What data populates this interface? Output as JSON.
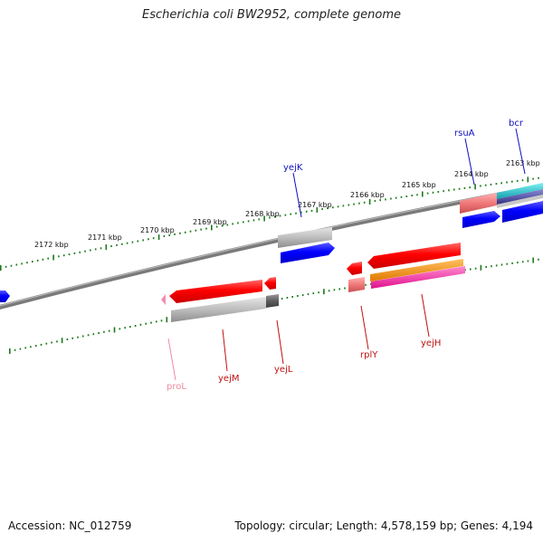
{
  "header": {
    "title": "Escherichia coli BW2952, complete genome"
  },
  "footer": {
    "accession": "Accession: NC_012759",
    "summary": "Topology: circular; Length: 4,578,159 bp; Genes: 4,194"
  },
  "map": {
    "colors": {
      "tick": "#1a7a1a",
      "backbone": "#808080",
      "label_forward": "#1010c0",
      "label_reverse": "#c01010",
      "label_rna": "#f08aa0"
    },
    "scale_labels": [
      "2172 kbp",
      "2171 kbp",
      "2170 kbp",
      "2169 kbp",
      "2168 kbp",
      "2167 kbp",
      "2166 kbp",
      "2165 kbp",
      "2164 kbp",
      "2163 kbp"
    ],
    "genes": [
      {
        "name": "bcr",
        "strand": "forward"
      },
      {
        "name": "rsuA",
        "strand": "forward"
      },
      {
        "name": "yejK",
        "strand": "forward"
      },
      {
        "name": "proL",
        "strand": "reverse",
        "type": "tRNA"
      },
      {
        "name": "yejM",
        "strand": "reverse"
      },
      {
        "name": "yejL",
        "strand": "reverse"
      },
      {
        "name": "rplY",
        "strand": "reverse"
      },
      {
        "name": "yejH",
        "strand": "reverse"
      }
    ]
  }
}
